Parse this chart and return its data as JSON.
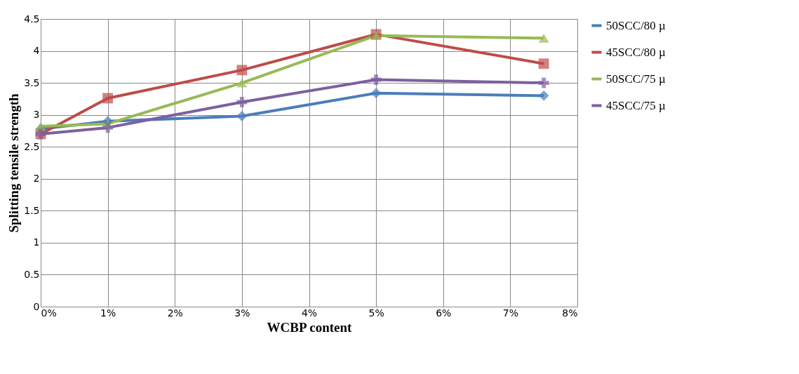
{
  "chart_data": {
    "type": "line",
    "xlabel": "WCBP content",
    "ylabel": "Splitting tensile strength",
    "x": [
      0,
      1,
      3,
      5,
      7.5
    ],
    "series": [
      {
        "name": "50SCC/80 µ",
        "color": "#4a7ebb",
        "marker": "diamond",
        "values": [
          2.78,
          2.9,
          2.98,
          3.34,
          3.3
        ]
      },
      {
        "name": "45SCC/80 µ",
        "color": "#be4b48",
        "marker": "square",
        "values": [
          2.7,
          3.26,
          3.7,
          4.26,
          3.8
        ]
      },
      {
        "name": "50SCC/75 µ",
        "color": "#98b954",
        "marker": "triangle",
        "values": [
          2.82,
          2.86,
          3.5,
          4.24,
          4.2
        ]
      },
      {
        "name": "45SCC/75 µ",
        "color": "#7d60a0",
        "marker": "cross",
        "values": [
          2.7,
          2.8,
          3.2,
          3.55,
          3.5
        ]
      }
    ],
    "xlim": [
      0,
      8
    ],
    "xticks": [
      {
        "value": 0,
        "label": "0%"
      },
      {
        "value": 1,
        "label": "1%"
      },
      {
        "value": 2,
        "label": "2%"
      },
      {
        "value": 3,
        "label": "3%"
      },
      {
        "value": 4,
        "label": "4%"
      },
      {
        "value": 5,
        "label": "5%"
      },
      {
        "value": 6,
        "label": "6%"
      },
      {
        "value": 7,
        "label": "7%"
      },
      {
        "value": 8,
        "label": "8%"
      }
    ],
    "ylim": [
      0,
      4.5
    ],
    "yticks": [
      0,
      0.5,
      1,
      1.5,
      2,
      2.5,
      3,
      3.5,
      4,
      4.5
    ],
    "grid": true,
    "legend": "right"
  }
}
